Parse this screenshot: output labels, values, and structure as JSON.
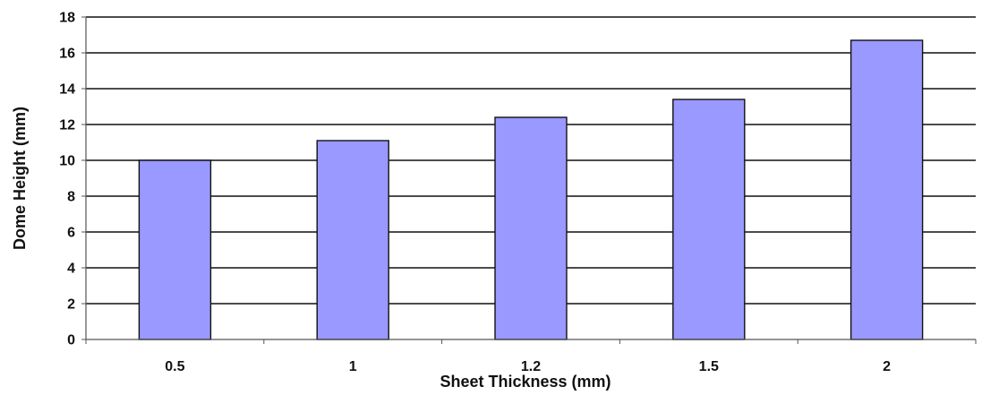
{
  "chart_data": {
    "type": "bar",
    "title": "",
    "xlabel": "Sheet Thickness (mm)",
    "ylabel": "Dome Height (mm)",
    "categories": [
      "0.5",
      "1",
      "1.2",
      "1.5",
      "2"
    ],
    "values": [
      10.0,
      11.1,
      12.4,
      13.4,
      16.7
    ],
    "ylim": [
      0,
      18
    ],
    "y_ticks": [
      0,
      2,
      4,
      6,
      8,
      10,
      12,
      14,
      16,
      18
    ],
    "grid": "horizontal",
    "legend": "none",
    "colors": {
      "bar_fill": "#9999ff",
      "bar_stroke": "#111111",
      "grid": "#111111",
      "axis": "#555555"
    }
  }
}
